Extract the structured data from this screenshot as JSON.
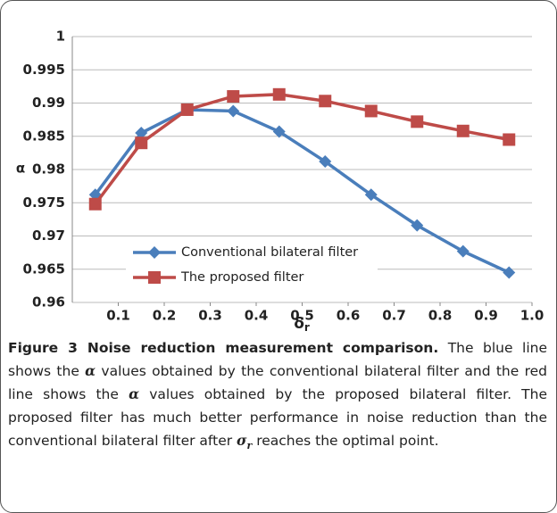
{
  "chart_data": {
    "type": "line",
    "y_label": "α",
    "x_label": {
      "symbol": "δ",
      "sub": "r"
    },
    "x": [
      0.05,
      0.15,
      0.25,
      0.35,
      0.45,
      0.55,
      0.65,
      0.75,
      0.85,
      0.95
    ],
    "series": [
      {
        "name": "Conventional bilateral filter",
        "color": "#4a7ebb",
        "marker": "diamond",
        "values": [
          0.9762,
          0.9855,
          0.989,
          0.9888,
          0.9857,
          0.9812,
          0.9762,
          0.9716,
          0.9677,
          0.9645
        ]
      },
      {
        "name": "The proposed filter",
        "color": "#be4b48",
        "marker": "square",
        "values": [
          0.9748,
          0.984,
          0.989,
          0.991,
          0.9913,
          0.9903,
          0.9888,
          0.9872,
          0.9858,
          0.9845
        ]
      }
    ],
    "xlim": [
      0,
      1
    ],
    "xticks": [
      0.1,
      0.2,
      0.3,
      0.4,
      0.5,
      0.6,
      0.7,
      0.8,
      0.9,
      {
        "value": 1,
        "label": "1.0"
      }
    ],
    "ylim": [
      0.96,
      1
    ],
    "yticks": [
      0.96,
      0.965,
      0.97,
      0.975,
      0.98,
      0.985,
      0.99,
      0.995,
      1
    ],
    "grid": true,
    "legend": "lower-left"
  },
  "caption": {
    "title": "Figure 3 Noise reduction measurement comparison.",
    "segments": [
      {
        "text": " The blue line shows the "
      },
      {
        "text": "α",
        "italic": true
      },
      {
        "text": " values obtained by the conventional bilateral filter and the red line shows the "
      },
      {
        "text": "α",
        "italic": true
      },
      {
        "text": " values obtained by the proposed bilateral filter. The proposed filter has much better performance in noise reduction than the conventional bilateral filter after "
      },
      {
        "text": "σ",
        "italic": true
      },
      {
        "text": "r",
        "sub": true
      },
      {
        "text": " reaches the optimal point."
      }
    ]
  }
}
